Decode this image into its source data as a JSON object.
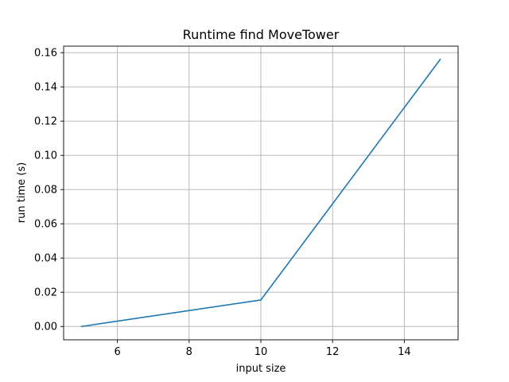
{
  "chart_data": {
    "type": "line",
    "title": "Runtime find MoveTower",
    "xlabel": "input size",
    "ylabel": "run time (s)",
    "xlim": [
      4.5,
      15.5
    ],
    "ylim": [
      -0.0078,
      0.1638
    ],
    "xticks": [
      6,
      8,
      10,
      12,
      14
    ],
    "yticks": [
      0.0,
      0.02,
      0.04,
      0.06,
      0.08,
      0.1,
      0.12,
      0.14,
      0.16
    ],
    "xtick_labels": [
      "6",
      "8",
      "10",
      "12",
      "14"
    ],
    "ytick_labels": [
      "0.00",
      "0.02",
      "0.04",
      "0.06",
      "0.08",
      "0.10",
      "0.12",
      "0.14",
      "0.16"
    ],
    "grid": true,
    "series": [
      {
        "color": "#1f77b4",
        "x": [
          5,
          10,
          15
        ],
        "y": [
          0.0,
          0.0155,
          0.156
        ]
      }
    ]
  }
}
